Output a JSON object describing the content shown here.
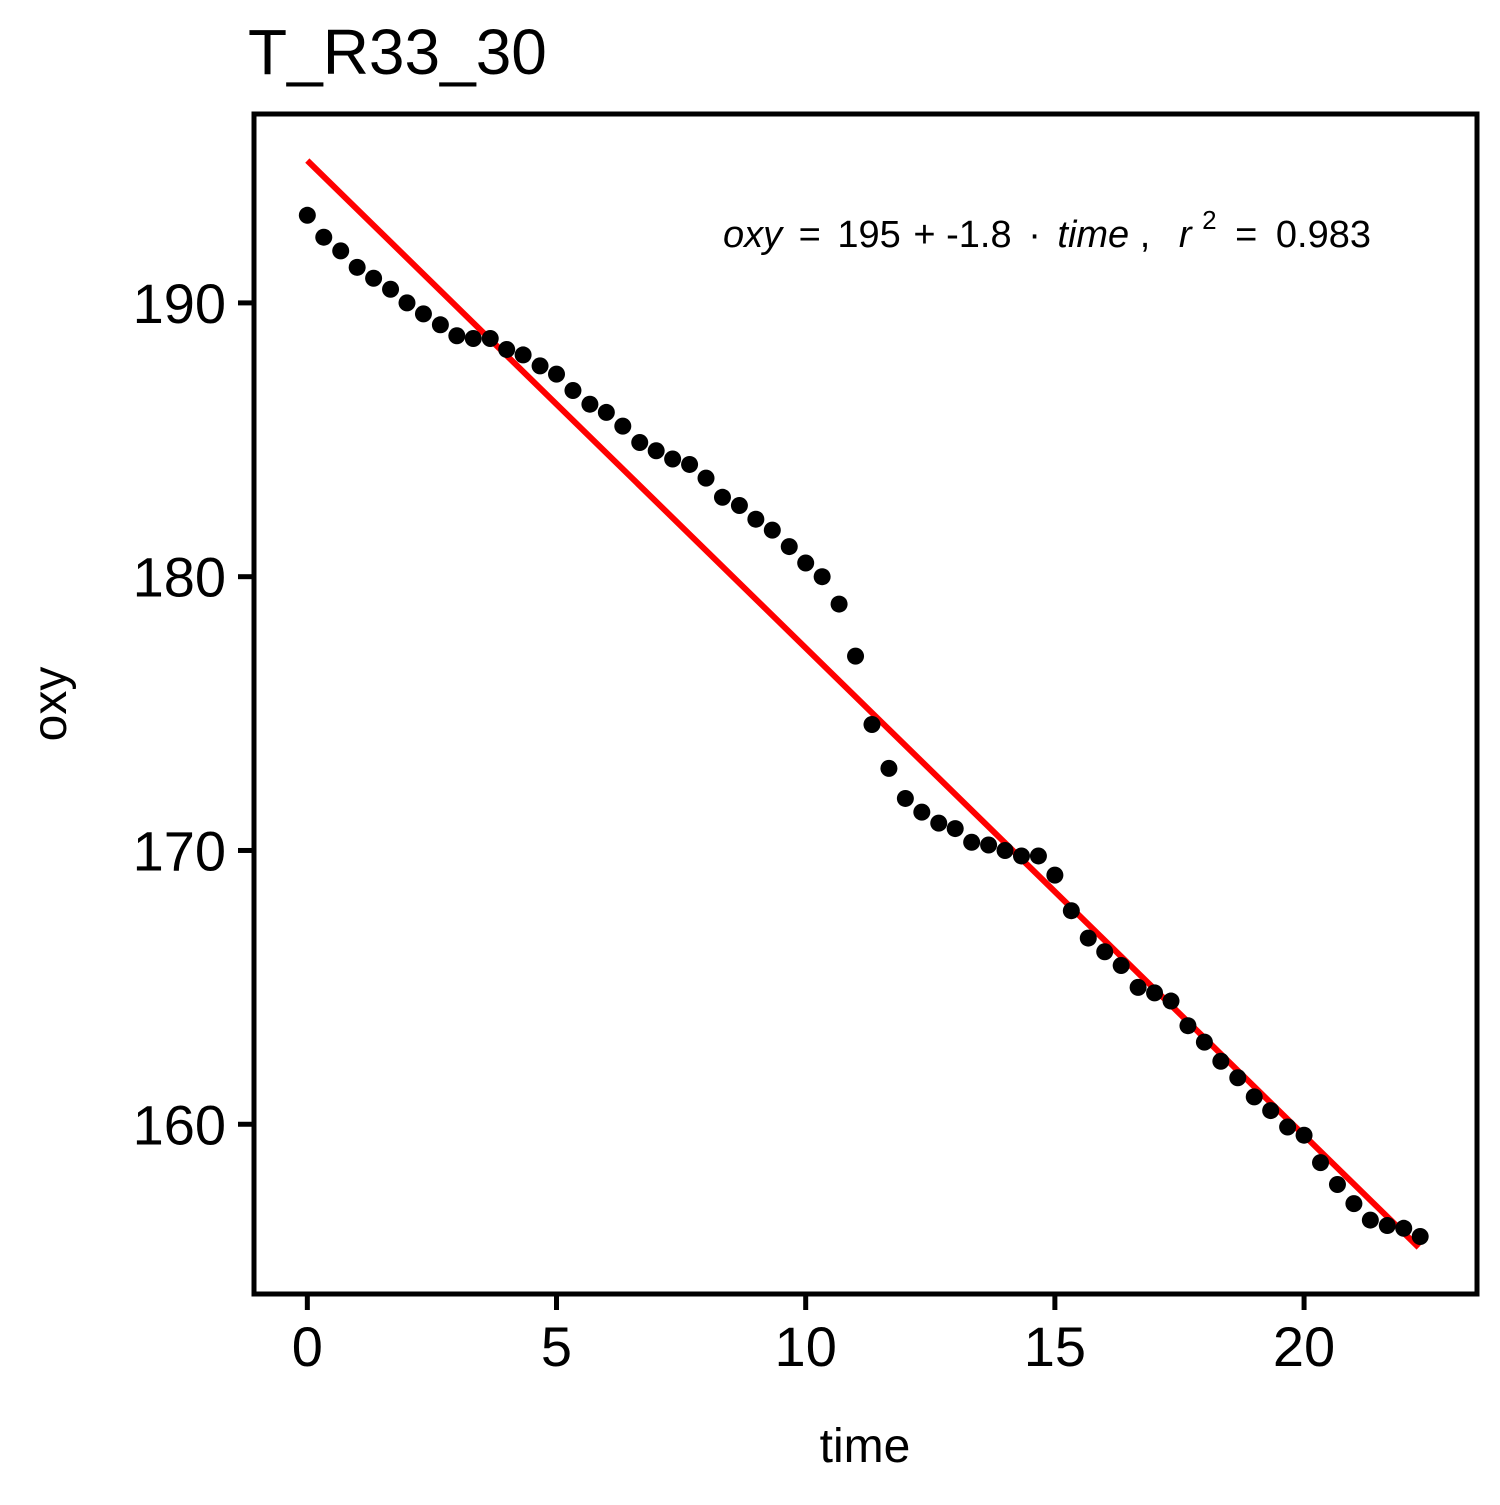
{
  "chart_data": {
    "type": "scatter",
    "title": "T_R33_30",
    "xlabel": "time",
    "ylabel": "oxy",
    "xlim": [
      -1.07,
      23.47
    ],
    "ylim": [
      153.8,
      196.9
    ],
    "xticks": [
      0,
      5,
      10,
      15,
      20
    ],
    "yticks": [
      160,
      170,
      180,
      190
    ],
    "xtick_labels": [
      "0",
      "5",
      "10",
      "15",
      "20"
    ],
    "ytick_labels": [
      "160",
      "170",
      "180",
      "190"
    ],
    "grid": false,
    "legend": "none",
    "point_color": "#000000",
    "fit_color": "#ff0000",
    "annotation": {
      "lhs": "oxy",
      "eq_sign": "=",
      "intercept": "195",
      "plus": "+",
      "slope": "-1.8",
      "dot": "·",
      "variable": "time",
      "comma": ",",
      "r_symbol": "r",
      "r_exponent": "2",
      "r_eq_sign": "=",
      "r2_value": "0.983"
    },
    "fit_line": {
      "x": [
        0,
        22.3
      ],
      "y": [
        195.2,
        155.5
      ]
    },
    "series": [
      {
        "x": [
          0,
          0.33,
          0.67,
          1.0,
          1.33,
          1.67,
          2.0,
          2.33,
          2.67,
          3.0,
          3.33,
          3.67,
          4.0,
          4.33,
          4.67,
          5.0,
          5.33,
          5.67,
          6.0,
          6.33,
          6.67,
          7.0,
          7.33,
          7.67,
          8.0,
          8.33,
          8.67,
          9.0,
          9.33,
          9.67,
          10.0,
          10.33,
          10.67,
          11.0,
          11.33,
          11.67,
          12.0,
          12.33,
          12.67,
          13.0,
          13.33,
          13.67,
          14.0,
          14.33,
          14.67,
          15.0,
          15.33,
          15.67,
          16.0,
          16.33,
          16.67,
          17.0,
          17.33,
          17.67,
          18.0,
          18.33,
          18.67,
          19.0,
          19.33,
          19.67,
          20.0,
          20.33,
          20.67,
          21.0,
          21.33,
          21.67,
          22.0,
          22.33
        ],
        "y": [
          193.2,
          192.4,
          191.9,
          191.3,
          190.9,
          190.5,
          190.0,
          189.6,
          189.2,
          188.8,
          188.7,
          188.7,
          188.3,
          188.1,
          187.7,
          187.4,
          186.8,
          186.3,
          186.0,
          185.5,
          184.9,
          184.6,
          184.3,
          184.1,
          183.6,
          182.9,
          182.6,
          182.1,
          181.7,
          181.1,
          180.5,
          180.0,
          179.0,
          177.1,
          174.6,
          173.0,
          171.9,
          171.4,
          171.0,
          170.8,
          170.3,
          170.2,
          170.0,
          169.8,
          169.8,
          169.1,
          167.8,
          166.8,
          166.3,
          165.8,
          165.0,
          164.8,
          164.5,
          163.6,
          163.0,
          162.3,
          161.7,
          161.0,
          160.5,
          159.9,
          159.6,
          158.6,
          157.8,
          157.1,
          156.5,
          156.3,
          156.2,
          155.9
        ]
      }
    ]
  }
}
